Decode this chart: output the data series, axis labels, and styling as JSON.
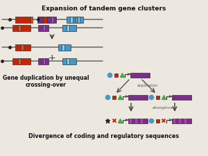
{
  "title_top": "Expansion of tandem gene clusters",
  "title_bottom": "Divergence of coding and regulatory sequences",
  "label_left": "Gene duplication by unequal\ncrossing-over",
  "label_duplication": "duplication",
  "label_divergence": "divergence",
  "bg_color": "#ece8e0",
  "colors": {
    "red": "#cc2200",
    "purple": "#7b2d8b",
    "blue": "#4499cc",
    "green": "#44aa44",
    "dark": "#222222",
    "line": "#666666",
    "arrow": "#444444"
  }
}
